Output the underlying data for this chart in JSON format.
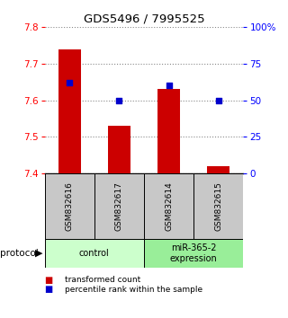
{
  "title": "GDS5496 / 7995525",
  "samples": [
    "GSM832616",
    "GSM832617",
    "GSM832614",
    "GSM832615"
  ],
  "transformed_counts": [
    7.74,
    7.53,
    7.63,
    7.42
  ],
  "percentile_ranks": [
    62,
    50,
    60,
    50
  ],
  "ylim_left": [
    7.4,
    7.8
  ],
  "ylim_right": [
    0,
    100
  ],
  "yticks_left": [
    7.4,
    7.5,
    7.6,
    7.7,
    7.8
  ],
  "yticks_right": [
    0,
    25,
    50,
    75,
    100
  ],
  "ytick_labels_right": [
    "0",
    "25",
    "50",
    "75",
    "100%"
  ],
  "groups": [
    {
      "label": "control",
      "samples": [
        0,
        1
      ],
      "color": "#ccffcc"
    },
    {
      "label": "miR-365-2\nexpression",
      "samples": [
        2,
        3
      ],
      "color": "#99ee99"
    }
  ],
  "bar_color": "#cc0000",
  "dot_color": "#0000cc",
  "bar_width": 0.45,
  "grid_color": "#888888",
  "sample_box_color": "#c8c8c8",
  "legend_red_label": "transformed count",
  "legend_blue_label": "percentile rank within the sample",
  "protocol_label": "protocol"
}
